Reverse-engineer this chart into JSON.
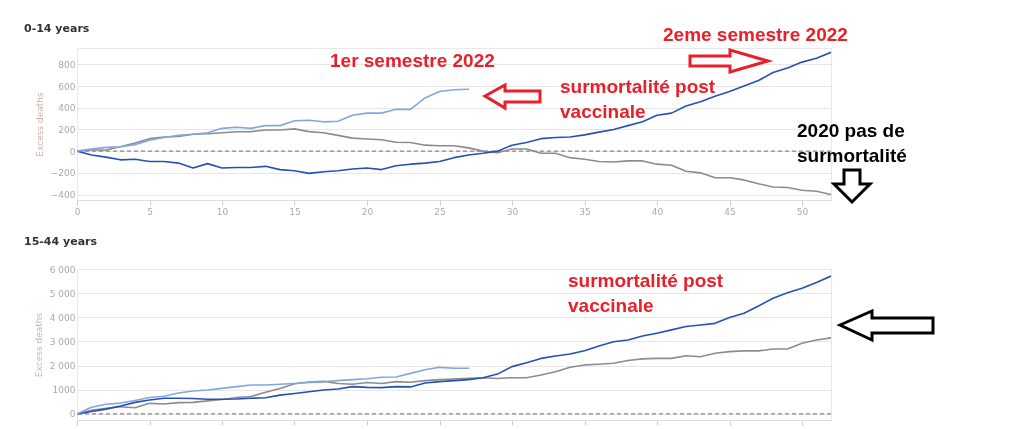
{
  "chart_data": [
    {
      "type": "line",
      "title": "0-14 years",
      "ylabel": "Excess deaths",
      "x": [
        0,
        1,
        2,
        3,
        4,
        5,
        6,
        7,
        8,
        9,
        10,
        11,
        12,
        13,
        14,
        15,
        16,
        17,
        18,
        19,
        20,
        21,
        22,
        23,
        24,
        25,
        26,
        27,
        28,
        29,
        30,
        31,
        32,
        33,
        34,
        35,
        36,
        37,
        38,
        39,
        40,
        41,
        42,
        43,
        44,
        45,
        46,
        47,
        48,
        49,
        50,
        51,
        52
      ],
      "series": [
        {
          "color": "#8c8c8c",
          "values": [
            0,
            10,
            10,
            40,
            75,
            115,
            130,
            135,
            155,
            160,
            170,
            178,
            180,
            195,
            195,
            205,
            180,
            170,
            145,
            120,
            112,
            105,
            82,
            80,
            55,
            50,
            50,
            30,
            0,
            -15,
            20,
            20,
            -20,
            -20,
            -60,
            -75,
            -95,
            -100,
            -90,
            -90,
            -120,
            -130,
            -185,
            -200,
            -245,
            -245,
            -265,
            -300,
            -330,
            -335,
            -360,
            -370,
            -400
          ]
        },
        {
          "color": "#2450b8",
          "values": [
            0,
            -35,
            -55,
            -80,
            -75,
            -95,
            -95,
            -110,
            -155,
            -115,
            -155,
            -150,
            -150,
            -140,
            -170,
            -180,
            -205,
            -190,
            -180,
            -165,
            -155,
            -170,
            -135,
            -120,
            -110,
            -95,
            -60,
            -35,
            -20,
            0,
            55,
            80,
            115,
            125,
            130,
            150,
            175,
            200,
            235,
            270,
            330,
            350,
            415,
            455,
            505,
            550,
            600,
            650,
            725,
            765,
            820,
            855,
            910
          ]
        },
        {
          "color": "#7fa8e0",
          "values": [
            0,
            20,
            35,
            40,
            60,
            100,
            125,
            145,
            155,
            170,
            210,
            220,
            210,
            235,
            235,
            280,
            285,
            270,
            275,
            330,
            350,
            350,
            385,
            385,
            490,
            550,
            565,
            570,
            null,
            null,
            null,
            null,
            null,
            null,
            null,
            null,
            null,
            null,
            null,
            null,
            null,
            null,
            null,
            null,
            null,
            null,
            null,
            null,
            null,
            null,
            null,
            null,
            null
          ]
        }
      ],
      "xlim": [
        0,
        52
      ],
      "xticks": [
        0,
        5,
        10,
        15,
        20,
        25,
        30,
        35,
        40,
        45,
        50
      ],
      "ylim": [
        -450,
        950
      ],
      "yticks": [
        -400,
        -200,
        0,
        200,
        400,
        600,
        800
      ],
      "grid": "y",
      "ref_lines": [
        {
          "axis": "y",
          "value": 0,
          "label": null,
          "color": "#888888",
          "line_style": "dashed"
        }
      ],
      "annotations": [
        "1er semestre 2022",
        "2eme semestre 2022",
        "surmortalité post vaccinale",
        "2020 pas de surmortalité"
      ]
    },
    {
      "type": "line",
      "title": "15-44 years",
      "ylabel": "Excess deaths",
      "x": [
        0,
        1,
        2,
        3,
        4,
        5,
        6,
        7,
        8,
        9,
        10,
        11,
        12,
        13,
        14,
        15,
        16,
        17,
        18,
        19,
        20,
        21,
        22,
        23,
        24,
        25,
        26,
        27,
        28,
        29,
        30,
        31,
        32,
        33,
        34,
        35,
        36,
        37,
        38,
        39,
        40,
        41,
        42,
        43,
        44,
        45,
        46,
        47,
        48,
        49,
        50,
        51,
        52
      ],
      "series": [
        {
          "color": "#8c8c8c",
          "values": [
            0,
            150,
            230,
            300,
            260,
            440,
            410,
            470,
            480,
            540,
            600,
            680,
            720,
            900,
            1050,
            1250,
            1320,
            1350,
            1260,
            1230,
            1300,
            1260,
            1340,
            1310,
            1380,
            1420,
            1450,
            1480,
            1500,
            1470,
            1500,
            1500,
            1615,
            1750,
            1930,
            2030,
            2060,
            2100,
            2210,
            2280,
            2300,
            2300,
            2410,
            2370,
            2510,
            2580,
            2610,
            2610,
            2690,
            2690,
            2930,
            3060,
            3150
          ]
        },
        {
          "color": "#2450b8",
          "values": [
            0,
            100,
            200,
            330,
            480,
            580,
            650,
            650,
            640,
            610,
            610,
            620,
            650,
            670,
            780,
            850,
            920,
            990,
            1030,
            1130,
            1100,
            1090,
            1130,
            1120,
            1280,
            1340,
            1380,
            1420,
            1500,
            1650,
            1960,
            2120,
            2300,
            2400,
            2480,
            2620,
            2810,
            2990,
            3060,
            3230,
            3340,
            3480,
            3620,
            3680,
            3750,
            3990,
            4170,
            4470,
            4790,
            5020,
            5200,
            5440,
            5710
          ]
        },
        {
          "color": "#7fa8e0",
          "values": [
            0,
            275,
            400,
            450,
            560,
            680,
            730,
            870,
            950,
            990,
            1060,
            1130,
            1200,
            1200,
            1230,
            1260,
            1300,
            1330,
            1380,
            1420,
            1460,
            1520,
            1530,
            1680,
            1830,
            1930,
            1890,
            1890,
            null,
            null,
            null,
            null,
            null,
            null,
            null,
            null,
            null,
            null,
            null,
            null,
            null,
            null,
            null,
            null,
            null,
            null,
            null,
            null,
            null,
            null,
            null,
            null,
            null
          ]
        }
      ],
      "xlim": [
        0,
        52
      ],
      "xticks": [
        {
          "value": 0,
          "label": null
        },
        {
          "value": 5,
          "label": null
        },
        {
          "value": 10,
          "label": null
        },
        {
          "value": 15,
          "label": null
        },
        {
          "value": 20,
          "label": null
        },
        {
          "value": 25,
          "label": null
        },
        {
          "value": 30,
          "label": null
        },
        {
          "value": 35,
          "label": null
        },
        {
          "value": 40,
          "label": null
        },
        {
          "value": 45,
          "label": null
        },
        {
          "value": 50,
          "label": null
        }
      ],
      "ylim": [
        -250,
        6000
      ],
      "yticks": [
        0,
        1000,
        {
          "value": 2000,
          "label": "2 000"
        },
        {
          "value": 3000,
          "label": "3 000"
        },
        {
          "value": 4000,
          "label": "4 000"
        },
        {
          "value": 5000,
          "label": "5 000"
        },
        {
          "value": 6000,
          "label": "6 000"
        }
      ],
      "tick_labels": "y",
      "grid": "y",
      "ref_lines": [
        {
          "axis": "y",
          "value": 0,
          "label": null,
          "color": "#888888",
          "line_style": "dashed"
        }
      ],
      "annotations": [
        "surmortalité post vaccinale"
      ]
    }
  ]
}
